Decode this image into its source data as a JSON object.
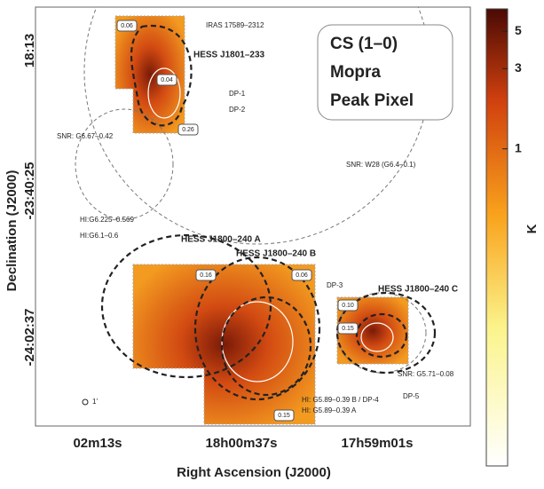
{
  "figure": {
    "legend_box": {
      "lines": [
        "CS (1–0)",
        "Mopra",
        "Peak Pixel"
      ]
    },
    "x_axis": {
      "label": "Right Ascension (J2000)",
      "ticks": [
        "02m13s",
        "18h00m37s",
        "17h59m01s"
      ]
    },
    "y_axis": {
      "label": "Declination (J2000)",
      "ticks": [
        "18:13",
        "-23:40:25",
        "-24:02:37"
      ]
    },
    "annotations": [
      "IRAS 17589–2312",
      "HESS J1801–233",
      "DP-1",
      "DP-2",
      "SNR: G6.67–0.42",
      "SNR: W28 (G6.4–0.1)",
      "HI:G6.225–0.569",
      "HI:G6.1–0.6",
      "HESS J1800–240 A",
      "HESS J1800–240 B",
      "DP-3",
      "HESS J1800–240 C",
      "SNR: G5.71–0.08",
      "DP-5",
      "HI: G5.89–0.39 B / DP-4",
      "HI: G5.89–0.39 A",
      "1'"
    ],
    "box_values": [
      "0.06",
      "0.04",
      "0.26",
      "0.16",
      "0.06",
      "0.15",
      "0.10",
      "0.15"
    ],
    "colorbar": {
      "label": "K",
      "log": true,
      "lim": [
        0.013,
        6.8
      ],
      "ticks": [
        1,
        3,
        5
      ]
    }
  }
}
